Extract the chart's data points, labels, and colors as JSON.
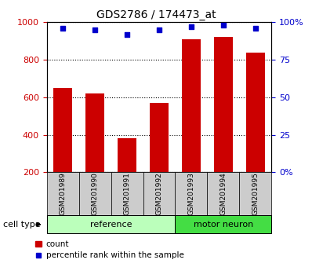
{
  "title": "GDS2786 / 174473_at",
  "categories": [
    "GSM201989",
    "GSM201990",
    "GSM201991",
    "GSM201992",
    "GSM201993",
    "GSM201994",
    "GSM201995"
  ],
  "bar_values": [
    650,
    620,
    380,
    570,
    910,
    920,
    840
  ],
  "percentile_values": [
    96,
    95,
    92,
    95,
    97,
    98,
    96
  ],
  "bar_color": "#cc0000",
  "dot_color": "#0000cc",
  "ylim_left": [
    200,
    1000
  ],
  "ylim_right": [
    0,
    100
  ],
  "yticks_left": [
    200,
    400,
    600,
    800,
    1000
  ],
  "yticks_right": [
    0,
    25,
    50,
    75,
    100
  ],
  "groups": [
    {
      "label": "reference",
      "indices": [
        0,
        1,
        2,
        3
      ],
      "color": "#bbffbb"
    },
    {
      "label": "motor neuron",
      "indices": [
        4,
        5,
        6
      ],
      "color": "#44dd44"
    }
  ],
  "cell_type_label": "cell type",
  "legend_count_label": "count",
  "legend_percentile_label": "percentile rank within the sample",
  "tick_color_left": "#cc0000",
  "tick_color_right": "#0000cc",
  "label_area_color": "#cccccc",
  "bar_width": 0.6
}
